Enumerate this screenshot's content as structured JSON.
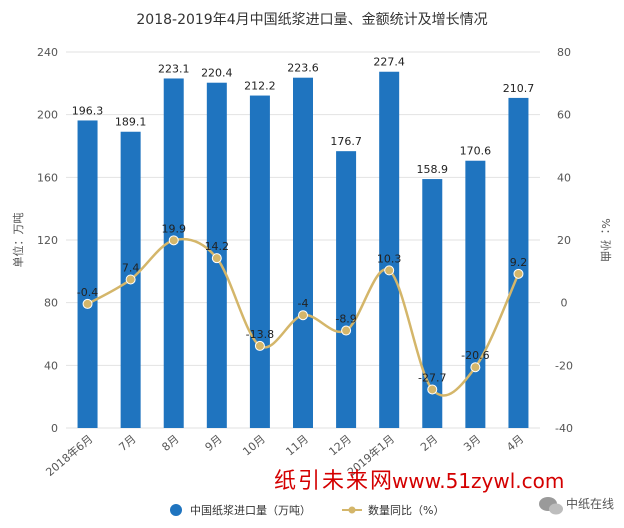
{
  "chart_data": {
    "type": "bar",
    "title": "2018-2019年4月中国纸浆进口量、金额统计及增长情况",
    "categories": [
      "2018年6月",
      "7月",
      "8月",
      "9月",
      "10月",
      "11月",
      "12月",
      "2019年1月",
      "2月",
      "3月",
      "4月"
    ],
    "series": [
      {
        "name": "中国纸浆进口量（万吨）",
        "type": "bar",
        "axis": "left",
        "color": "#1f74bf",
        "values": [
          196.3,
          189.1,
          223.1,
          220.4,
          212.2,
          223.6,
          176.7,
          227.4,
          158.9,
          170.6,
          210.7
        ],
        "labels": [
          "196.3",
          "189.1",
          "223.1",
          "220.4",
          "212.2",
          "223.6",
          "176.7",
          "227.4",
          "158.9",
          "170.6",
          "210.7"
        ]
      },
      {
        "name": "数量同比（%）",
        "type": "line",
        "axis": "right",
        "color": "#d4b66a",
        "values": [
          -0.4,
          7.4,
          19.9,
          14.2,
          -13.8,
          -4,
          -8.9,
          10.3,
          -27.7,
          -20.6,
          9.2
        ],
        "labels": [
          "-0.4",
          "7.4",
          "19.9",
          "14.2",
          "-13.8",
          "-4",
          "-8.9",
          "10.3",
          "-27.7",
          "-20.6",
          "9.2"
        ]
      }
    ],
    "ylabel": "单位：万吨",
    "y2label": "%：孙曲",
    "ylim": [
      0,
      240
    ],
    "y2lim": [
      -40,
      80
    ],
    "yticks": [
      "0",
      "40",
      "80",
      "120",
      "160",
      "200",
      "240"
    ],
    "y2ticks": [
      "-40",
      "-20",
      "0",
      "20",
      "40",
      "60",
      "80"
    ],
    "grid": true,
    "legend": "bottom"
  },
  "watermark": {
    "site": "纸引未来网",
    "url": "www.51zywl.com",
    "brand": "中纸在线"
  }
}
